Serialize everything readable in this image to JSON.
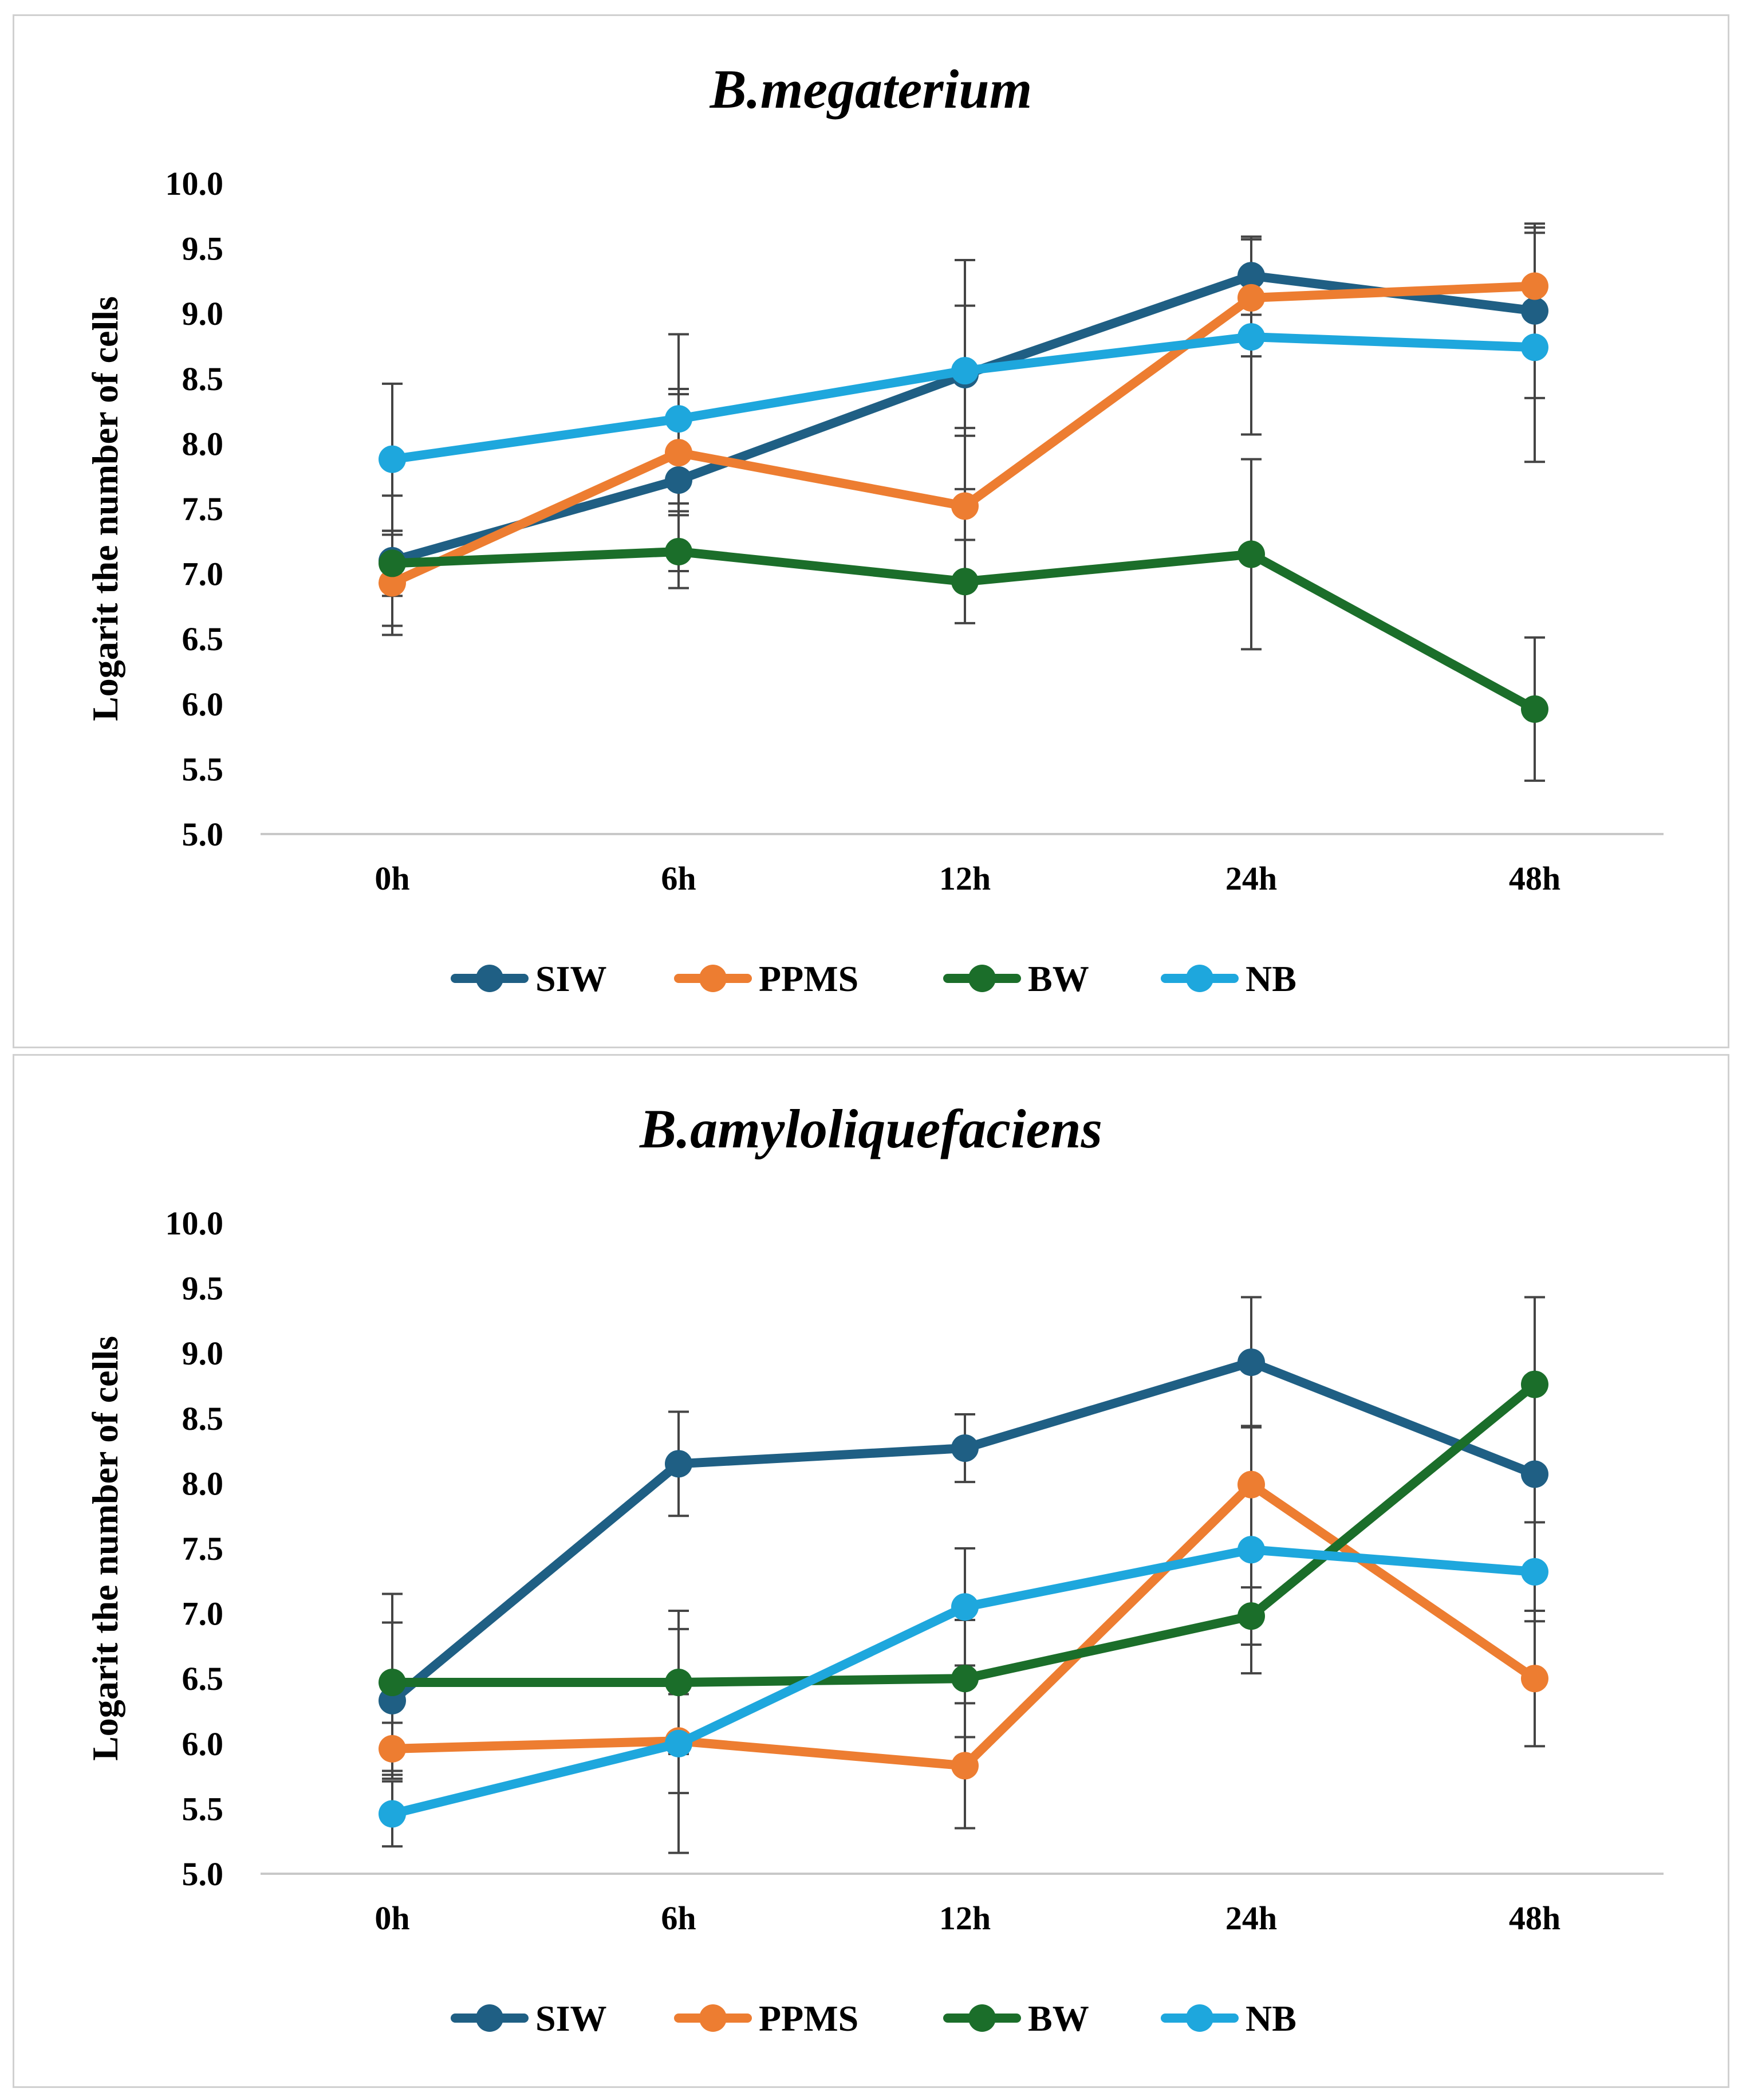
{
  "chart_data": [
    {
      "type": "line",
      "title": "B.megaterium",
      "xlabel": "",
      "ylabel": "Logarit the number of cells",
      "categories": [
        "0h",
        "6h",
        "12h",
        "24h",
        "48h"
      ],
      "ylim": [
        5.0,
        10.0
      ],
      "yticks": [
        "5.0",
        "5.5",
        "6.0",
        "6.5",
        "7.0",
        "7.5",
        "8.0",
        "8.5",
        "9.0",
        "9.5",
        "10.0"
      ],
      "grid": false,
      "legend": "bottom",
      "series": [
        {
          "name": "SIW",
          "color": "#1f5f84",
          "values": [
            7.1,
            7.72,
            8.53,
            9.29,
            9.02
          ],
          "error": [
            0.5,
            0.7,
            0.88,
            0.3,
            0.67
          ]
        },
        {
          "name": "PPMS",
          "color": "#ed7d31",
          "values": [
            6.93,
            7.93,
            7.52,
            9.12,
            9.21
          ],
          "error": [
            0.4,
            0.45,
            0.6,
            0.45,
            0.45
          ]
        },
        {
          "name": "BW",
          "color": "#1b6e2a",
          "values": [
            7.08,
            7.17,
            6.94,
            7.15,
            5.96
          ],
          "error": [
            0.25,
            0.28,
            0.32,
            0.73,
            0.55
          ]
        },
        {
          "name": "NB",
          "color": "#1ea7dd",
          "values": [
            7.88,
            8.19,
            8.56,
            8.82,
            8.74
          ],
          "error": [
            0.58,
            0.65,
            0.5,
            0.75,
            0.88
          ]
        }
      ]
    },
    {
      "type": "line",
      "title": "B.amyloliquefaciens",
      "xlabel": "",
      "ylabel": "Logarit the number of cells",
      "categories": [
        "0h",
        "6h",
        "12h",
        "24h",
        "48h"
      ],
      "ylim": [
        5.0,
        10.0
      ],
      "yticks": [
        "5.0",
        "5.5",
        "6.0",
        "6.5",
        "7.0",
        "7.5",
        "8.0",
        "8.5",
        "9.0",
        "9.5",
        "10.0"
      ],
      "grid": false,
      "legend": "bottom",
      "series": [
        {
          "name": "SIW",
          "color": "#1f5f84",
          "values": [
            6.33,
            8.15,
            8.27,
            8.93,
            8.07
          ],
          "error": [
            0.6,
            0.4,
            0.26,
            0.5,
            0.7
          ]
        },
        {
          "name": "PPMS",
          "color": "#ed7d31",
          "values": [
            5.96,
            6.02,
            5.83,
            7.99,
            6.5
          ],
          "error": [
            0.2,
            0.86,
            0.48,
            0.45,
            0.52
          ]
        },
        {
          "name": "BW",
          "color": "#1b6e2a",
          "values": [
            6.47,
            6.47,
            6.5,
            6.98,
            8.76
          ],
          "error": [
            0.68,
            0.55,
            0.45,
            0.22,
            0.67
          ]
        },
        {
          "name": "NB",
          "color": "#1ea7dd",
          "values": [
            5.46,
            6.0,
            7.05,
            7.49,
            7.32
          ],
          "error": [
            0.25,
            0.38,
            0.45,
            0.95,
            0.38
          ]
        }
      ]
    }
  ]
}
